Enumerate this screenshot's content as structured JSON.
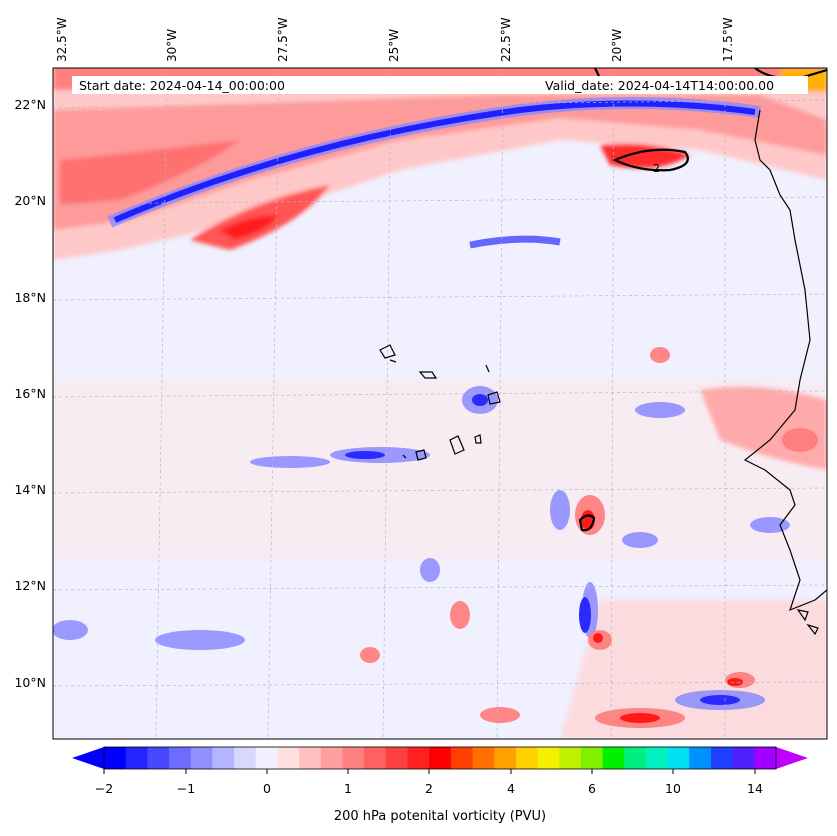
{
  "map": {
    "variable_label": "200 hPa potenital vorticity (PVU)",
    "start_date": "Start date: 2024-04-14_00:00:00",
    "valid_date": "Valid_date: 2024-04-14T14:00:00.00",
    "contour_label": "2",
    "longitude_labels": [
      "32.5°W",
      "30°W",
      "27.5°W",
      "25°W",
      "22.5°W",
      "20°W",
      "17.5°W"
    ],
    "latitude_labels": [
      "22°N",
      "20°N",
      "18°N",
      "16°N",
      "14°N",
      "12°N",
      "10°N"
    ],
    "colorbar": {
      "ticks": [
        "−2",
        "−1",
        "0",
        "1",
        "2",
        "4",
        "6",
        "10",
        "14"
      ],
      "colors": [
        "#0000ff",
        "#2424ff",
        "#4848ff",
        "#6c6cff",
        "#9090ff",
        "#b4b4ff",
        "#d8d8ff",
        "#f0f0ff",
        "#ffe0e0",
        "#ffc0c0",
        "#ffa0a0",
        "#ff8080",
        "#ff6060",
        "#ff4040",
        "#ff2020",
        "#ff0000",
        "#ff4000",
        "#ff7000",
        "#ffa000",
        "#ffd000",
        "#f4f000",
        "#c0f000",
        "#80f000",
        "#00f000",
        "#00f080",
        "#00f0c0",
        "#00e0f0",
        "#0090ff",
        "#2040ff",
        "#5020ff",
        "#a000ff"
      ],
      "extend_min_color": "#0000ff",
      "extend_max_color": "#c000ff"
    },
    "background_color": "#f0f0ff",
    "coastline_color": "#000000"
  }
}
